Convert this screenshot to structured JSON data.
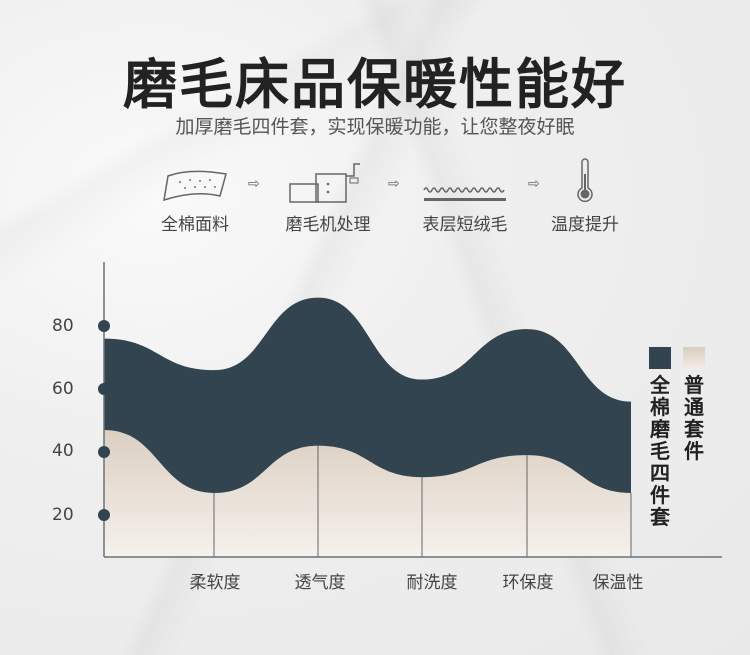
{
  "header": {
    "title": "磨毛床品保暖性能好",
    "subtitle": "加厚磨毛四件套，实现保暖功能，让您整夜好眠"
  },
  "process": [
    {
      "label": "全棉面料",
      "icon": "fabric-icon"
    },
    {
      "label": "磨毛机处理",
      "icon": "machine-icon"
    },
    {
      "label": "表层短绒毛",
      "icon": "fleece-icon"
    },
    {
      "label": "温度提升",
      "icon": "thermometer-icon"
    }
  ],
  "chart_data": {
    "type": "area",
    "categories": [
      "柔软度",
      "透气度",
      "耐洗度",
      "环保度",
      "保温性"
    ],
    "yticks": [
      20,
      40,
      60,
      80
    ],
    "series": [
      {
        "name": "全棉磨毛四件套",
        "color": "#32444f",
        "start_value": 76,
        "values": [
          66,
          89,
          63,
          79,
          56
        ]
      },
      {
        "name": "普通套件",
        "color": "#e8ddd2",
        "start_value": 47,
        "values": [
          27,
          42,
          32,
          39,
          27
        ]
      }
    ],
    "legend": "right"
  }
}
